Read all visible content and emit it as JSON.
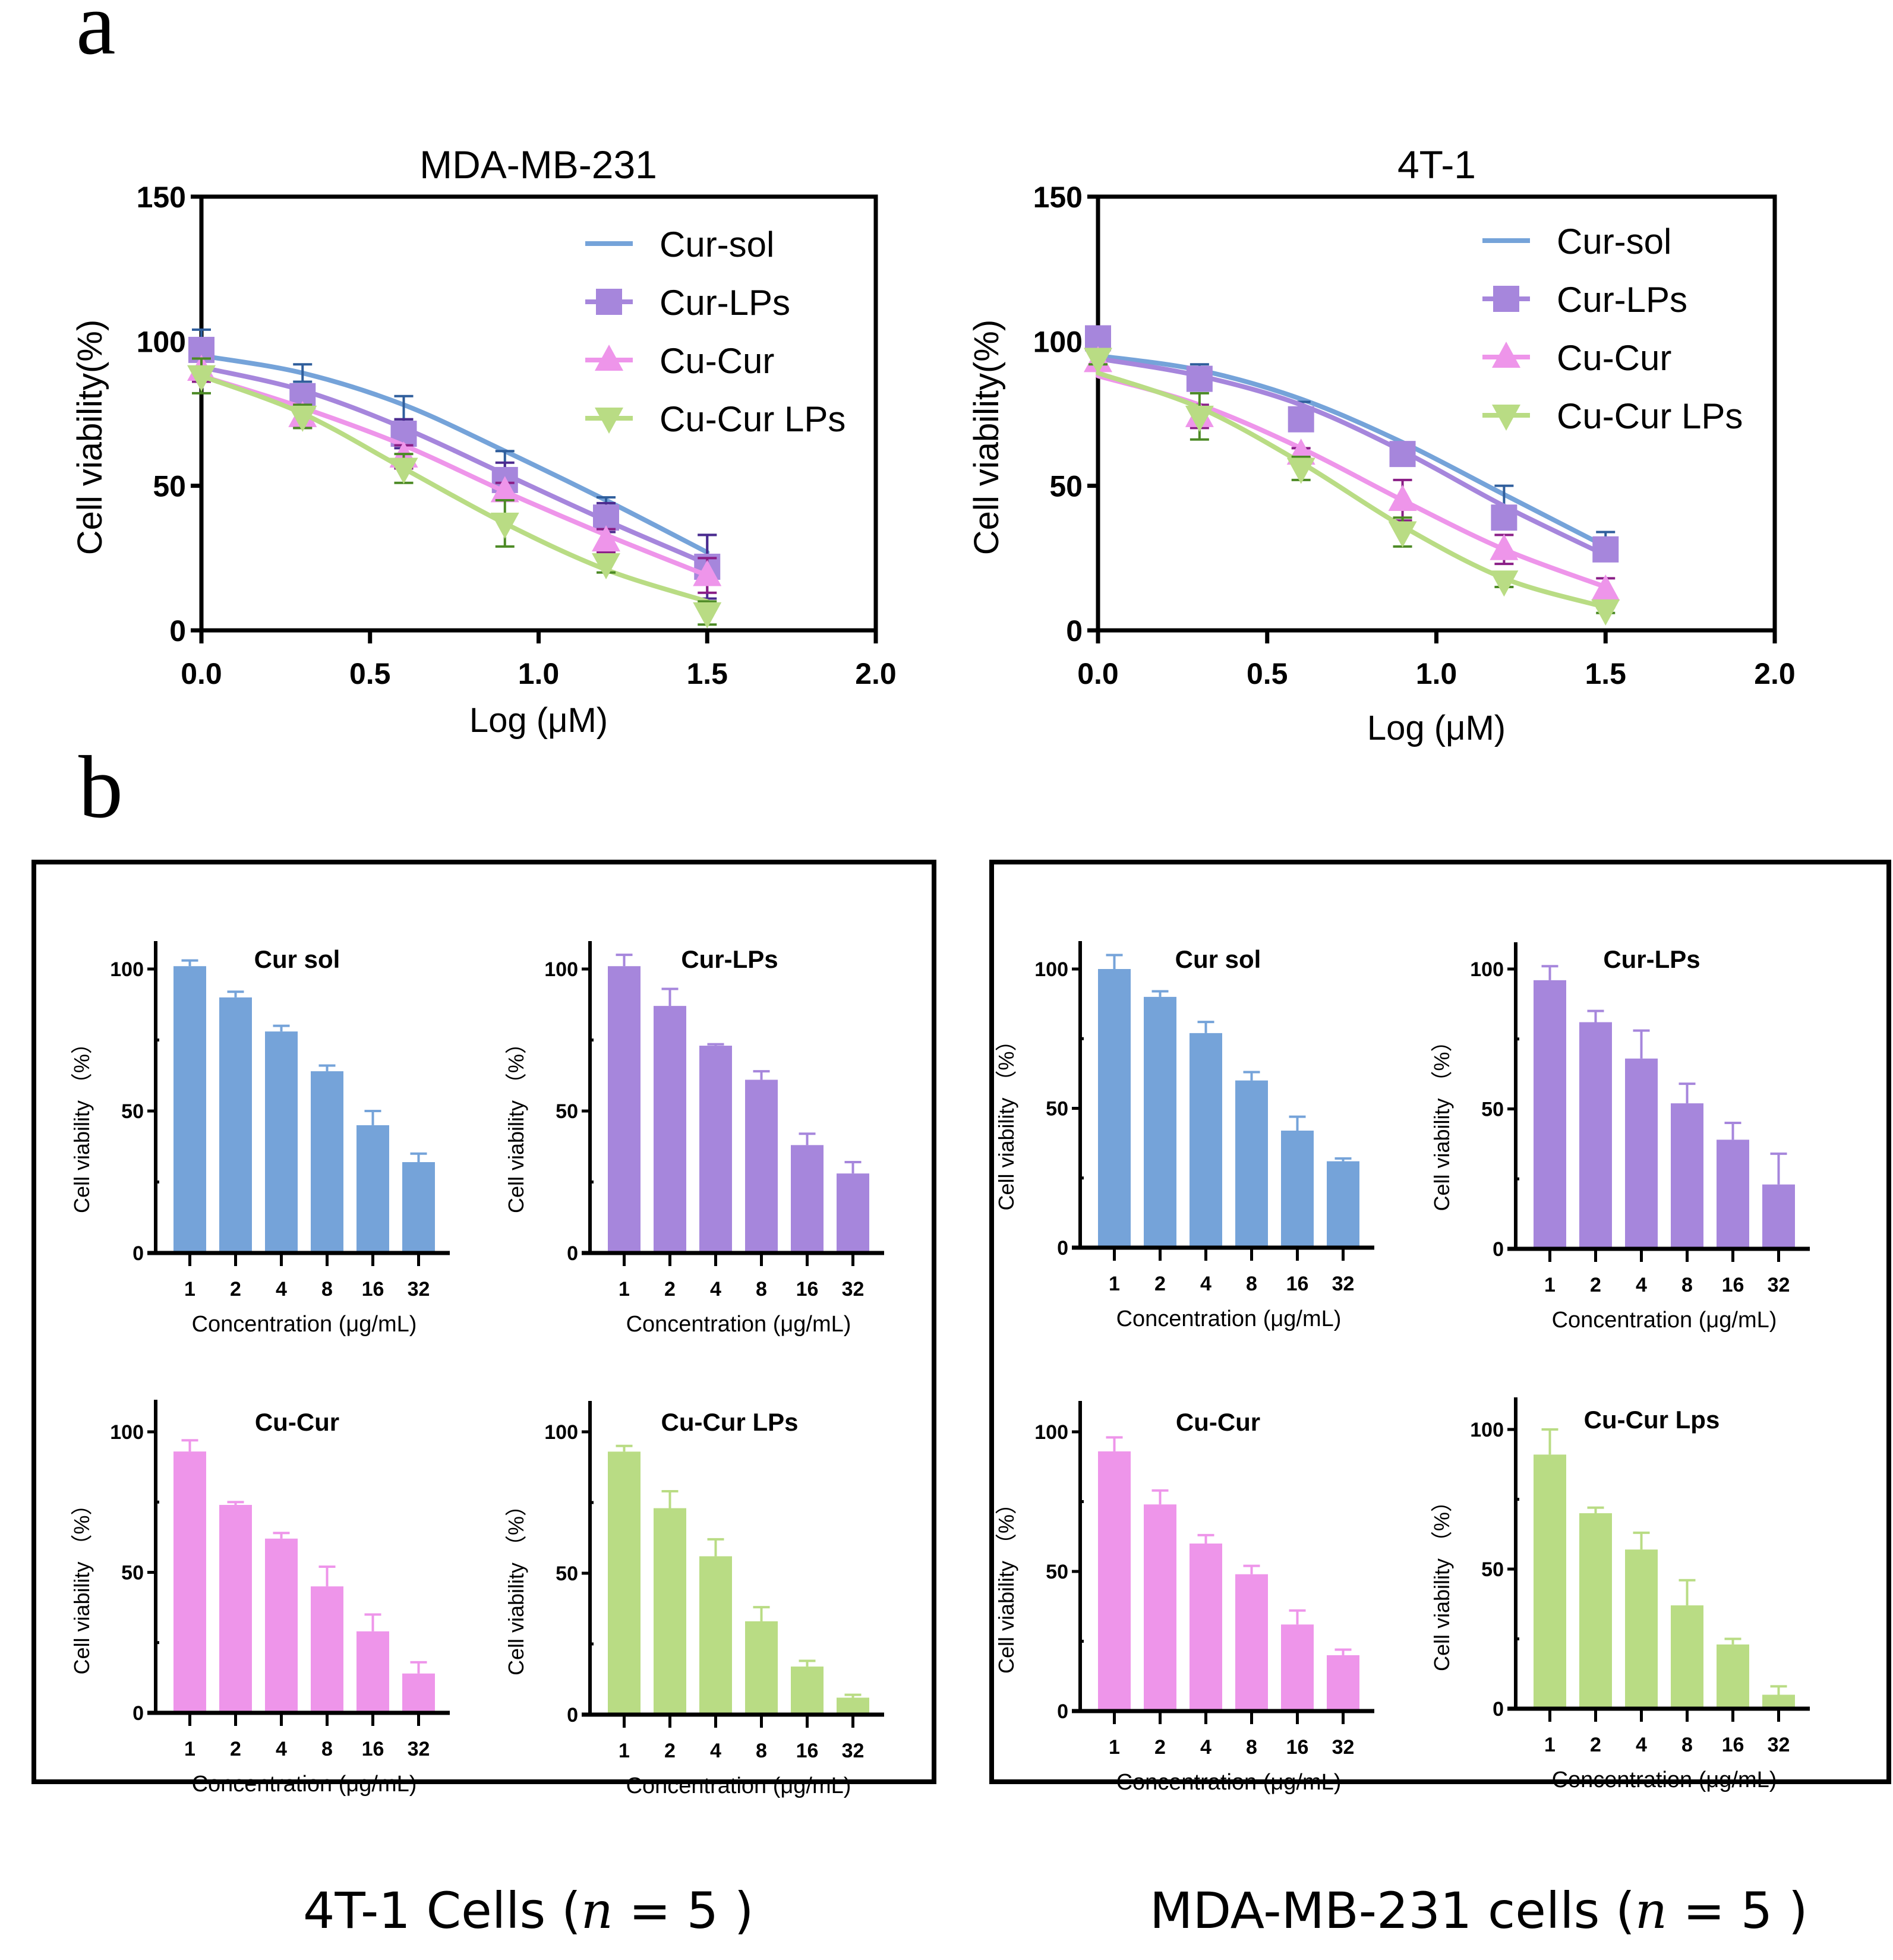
{
  "panel_labels": {
    "a": "a",
    "b": "b"
  },
  "colors": {
    "Cur-sol": "#75A3D9",
    "Cur-LPs": "#A686DC",
    "Cu-Cur": "#EE95EA",
    "Cu-Cur LPs": "#B9DC84",
    "err_Cur-sol": "#2F5E9C",
    "err_Cur-LPs": "#4B2A8F",
    "err_Cu-Cur": "#8A1E86",
    "err_Cu-Cur LPs": "#4C8A25"
  },
  "captions": {
    "left_prefix": "4T-1 Cells (",
    "right_prefix": "MDA-MB-231 cells (",
    "n_var": "n",
    "n_eq": " = 5 )"
  },
  "chart_data": [
    {
      "id": "line-mda",
      "type": "line",
      "title": "MDA-MB-231",
      "xlabel": "Log (μM)",
      "ylabel": "Cell viability(%)",
      "xlim": [
        0,
        2.0
      ],
      "ylim": [
        0,
        150
      ],
      "xticks": [
        "0.0",
        "0.5",
        "1.0",
        "1.5",
        "2.0"
      ],
      "xtick_values": [
        0,
        0.5,
        1.0,
        1.5,
        2.0
      ],
      "yticks": [
        "0",
        "50",
        "100",
        "150"
      ],
      "ytick_values": [
        0,
        50,
        100,
        150
      ],
      "legend_position": "top-right",
      "x": [
        0,
        0.3,
        0.6,
        0.9,
        1.2,
        1.5
      ],
      "series": [
        {
          "name": "Cur-sol",
          "marker": "none",
          "values": [
            99,
            89,
            77,
            59,
            42,
            28
          ],
          "errors": [
            5,
            3,
            4,
            3,
            4,
            5
          ],
          "fit": [
            95,
            89,
            78,
            62,
            45,
            27
          ]
        },
        {
          "name": "Cur-LPs",
          "marker": "square",
          "values": [
            97,
            81,
            68,
            52,
            39,
            22
          ],
          "errors": [
            4,
            4,
            5,
            6,
            5,
            11
          ],
          "fit": [
            91,
            83,
            70,
            54,
            38,
            23
          ]
        },
        {
          "name": "Cu-Cur",
          "marker": "triangle-up",
          "values": [
            90,
            74,
            60,
            48,
            31,
            19
          ],
          "errors": [
            4,
            4,
            4,
            3,
            4,
            6
          ],
          "fit": [
            88,
            77,
            64,
            48,
            33,
            19
          ]
        },
        {
          "name": "Cu-Cur LPs",
          "marker": "triangle-down",
          "values": [
            88,
            74,
            56,
            37,
            23,
            6
          ],
          "errors": [
            6,
            4,
            5,
            8,
            3,
            4
          ],
          "fit": [
            88,
            75,
            56,
            37,
            21,
            10
          ]
        }
      ]
    },
    {
      "id": "line-4t1",
      "type": "line",
      "title": "4T-1",
      "xlabel": "Log (μM)",
      "ylabel": "Cell viability(%)",
      "xlim": [
        0,
        2.0
      ],
      "ylim": [
        0,
        150
      ],
      "xticks": [
        "0.0",
        "0.5",
        "1.0",
        "1.5",
        "2.0"
      ],
      "xtick_values": [
        0,
        0.5,
        1.0,
        1.5,
        2.0
      ],
      "yticks": [
        "0",
        "50",
        "100",
        "150"
      ],
      "ytick_values": [
        0,
        50,
        100,
        150
      ],
      "legend_position": "top-right",
      "x": [
        0,
        0.3,
        0.6,
        0.9,
        1.2,
        1.5
      ],
      "series": [
        {
          "name": "Cur-sol",
          "marker": "none",
          "values": [
            100,
            89,
            77,
            63,
            45,
            31
          ],
          "errors": [
            2,
            3,
            2,
            2,
            5,
            3
          ],
          "fit": [
            95,
            90,
            80,
            65,
            47,
            29
          ]
        },
        {
          "name": "Cur-LPs",
          "marker": "square",
          "values": [
            101,
            87,
            73,
            61,
            39,
            28
          ],
          "errors": [
            3,
            4,
            2,
            2,
            4,
            2
          ],
          "fit": [
            94,
            88,
            78,
            62,
            43,
            26
          ]
        },
        {
          "name": "Cu-Cur",
          "marker": "triangle-up",
          "values": [
            93,
            74,
            61,
            45,
            28,
            14
          ],
          "errors": [
            3,
            4,
            2,
            7,
            5,
            4
          ],
          "fit": [
            88,
            78,
            63,
            45,
            28,
            15
          ]
        },
        {
          "name": "Cu-Cur LPs",
          "marker": "triangle-down",
          "values": [
            94,
            74,
            56,
            34,
            17,
            7
          ],
          "errors": [
            2,
            8,
            4,
            5,
            2,
            1
          ],
          "fit": [
            89,
            77,
            58,
            36,
            18,
            8
          ]
        }
      ]
    },
    {
      "id": "bar-4t1-cursol",
      "group": "4T-1",
      "type": "bar",
      "title": "Cur sol",
      "color_key": "Cur-sol",
      "categories": [
        "1",
        "2",
        "4",
        "8",
        "16",
        "32"
      ],
      "values": [
        101,
        90,
        78,
        64,
        45,
        32
      ],
      "errors": [
        2,
        2,
        2,
        2,
        5,
        3
      ],
      "xlabel": "Concentration (μg/mL)",
      "ylabel": "Cell viability （%）",
      "ylim": [
        0,
        110
      ],
      "yticks": [
        "0",
        "50",
        "100"
      ],
      "ytick_values": [
        0,
        50,
        100
      ]
    },
    {
      "id": "bar-4t1-curlps",
      "group": "4T-1",
      "type": "bar",
      "title": "Cur-LPs",
      "color_key": "Cur-LPs",
      "categories": [
        "1",
        "2",
        "4",
        "8",
        "16",
        "32"
      ],
      "values": [
        101,
        87,
        73,
        61,
        38,
        28
      ],
      "errors": [
        4,
        6,
        0.5,
        3,
        4,
        4
      ],
      "xlabel": "Concentration (μg/mL)",
      "ylabel": "Cell viability （%）",
      "ylim": [
        0,
        110
      ],
      "yticks": [
        "0",
        "50",
        "100"
      ],
      "ytick_values": [
        0,
        50,
        100
      ]
    },
    {
      "id": "bar-4t1-cucur",
      "group": "4T-1",
      "type": "bar",
      "title": "Cu-Cur",
      "color_key": "Cu-Cur",
      "categories": [
        "1",
        "2",
        "4",
        "8",
        "16",
        "32"
      ],
      "values": [
        93,
        74,
        62,
        45,
        29,
        14
      ],
      "errors": [
        4,
        1,
        2,
        7,
        6,
        4
      ],
      "xlabel": "Concentration (μg/mL)",
      "ylabel": "Cell viability （%）",
      "ylim": [
        0,
        110
      ],
      "yticks": [
        "0",
        "50",
        "100"
      ],
      "ytick_values": [
        0,
        50,
        100
      ]
    },
    {
      "id": "bar-4t1-cucurlps",
      "group": "4T-1",
      "type": "bar",
      "title": "Cu-Cur LPs",
      "color_key": "Cu-Cur LPs",
      "categories": [
        "1",
        "2",
        "4",
        "8",
        "16",
        "32"
      ],
      "values": [
        93,
        73,
        56,
        33,
        17,
        6
      ],
      "errors": [
        2,
        6,
        6,
        5,
        2,
        1
      ],
      "xlabel": "Concentration (μg/mL)",
      "ylabel": "Cell viability （%）",
      "ylim": [
        0,
        110
      ],
      "yticks": [
        "0",
        "50",
        "100"
      ],
      "ytick_values": [
        0,
        50,
        100
      ]
    },
    {
      "id": "bar-mda-cursol",
      "group": "MDA-MB-231",
      "type": "bar",
      "title": "Cur sol",
      "color_key": "Cur-sol",
      "categories": [
        "1",
        "2",
        "4",
        "8",
        "16",
        "32"
      ],
      "values": [
        100,
        90,
        77,
        60,
        42,
        31
      ],
      "errors": [
        5,
        2,
        4,
        3,
        5,
        1
      ],
      "xlabel": "Concentration (μg/mL)",
      "ylabel": "Cell viability （%）",
      "ylim": [
        0,
        110
      ],
      "yticks": [
        "0",
        "50",
        "100"
      ],
      "ytick_values": [
        0,
        50,
        100
      ]
    },
    {
      "id": "bar-mda-curlps",
      "group": "MDA-MB-231",
      "type": "bar",
      "title": "Cur-LPs",
      "color_key": "Cur-LPs",
      "categories": [
        "1",
        "2",
        "4",
        "8",
        "16",
        "32"
      ],
      "values": [
        96,
        81,
        68,
        52,
        39,
        23
      ],
      "errors": [
        5,
        4,
        10,
        7,
        6,
        11
      ],
      "xlabel": "Concentration (μg/mL)",
      "ylabel": "Cell viability （%）",
      "ylim": [
        0,
        110
      ],
      "yticks": [
        "0",
        "50",
        "100"
      ],
      "ytick_values": [
        0,
        50,
        100
      ]
    },
    {
      "id": "bar-mda-cucur",
      "group": "MDA-MB-231",
      "type": "bar",
      "title": "Cu-Cur",
      "color_key": "Cu-Cur",
      "categories": [
        "1",
        "2",
        "4",
        "8",
        "16",
        "32"
      ],
      "values": [
        93,
        74,
        60,
        49,
        31,
        20
      ],
      "errors": [
        5,
        5,
        3,
        3,
        5,
        2
      ],
      "xlabel": "Concentration (μg/mL)",
      "ylabel": "Cell viability （%）",
      "ylim": [
        0,
        110
      ],
      "yticks": [
        "0",
        "50",
        "100"
      ],
      "ytick_values": [
        0,
        50,
        100
      ]
    },
    {
      "id": "bar-mda-cucurlps",
      "group": "MDA-MB-231",
      "type": "bar",
      "title": "Cu-Cur Lps",
      "color_key": "Cu-Cur LPs",
      "categories": [
        "1",
        "2",
        "4",
        "8",
        "16",
        "32"
      ],
      "values": [
        91,
        70,
        57,
        37,
        23,
        5
      ],
      "errors": [
        9,
        2,
        6,
        9,
        2,
        3
      ],
      "xlabel": "Concentration (μg/mL)",
      "ylabel": "Cell viability （%）",
      "ylim": [
        0,
        110
      ],
      "yticks": [
        "0",
        "50",
        "100"
      ],
      "ytick_values": [
        0,
        50,
        100
      ]
    }
  ]
}
